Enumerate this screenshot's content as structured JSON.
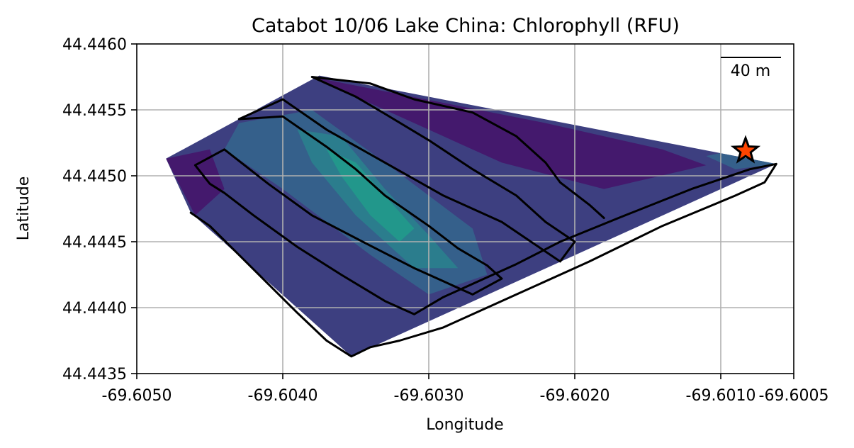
{
  "chart_data": {
    "type": "contour-map",
    "title": "Catabot 10/06 Lake China: Chlorophyll (RFU)",
    "xlabel": "Longitude",
    "ylabel": "Latitude",
    "xlim": [
      -69.605,
      -69.6005
    ],
    "ylim": [
      44.4435,
      44.446
    ],
    "x_ticks": [
      -69.605,
      -69.604,
      -69.603,
      -69.602,
      -69.601,
      -69.6005
    ],
    "x_tick_labels": [
      "-69.6050",
      "-69.6040",
      "-69.6030",
      "-69.6020",
      "-69.6010",
      "-69.6005"
    ],
    "y_ticks": [
      44.4435,
      44.444,
      44.4445,
      44.445,
      44.4455,
      44.446
    ],
    "y_tick_labels": [
      "44.4435",
      "44.4440",
      "44.4445",
      "44.4450",
      "44.4455",
      "44.4460"
    ],
    "grid": true,
    "scale_bar": {
      "label": "40 m",
      "length_deg_lon": 0.00045
    },
    "colors": {
      "deep": "#44196d",
      "low": "#3d3f80",
      "mid": "#35608b",
      "midhigh": "#2b7d8d",
      "high": "#22978b",
      "track": "#000000",
      "star": "#ff4500",
      "grid": "#b0b0b0"
    },
    "hull": [
      [
        -69.6048,
        44.44513
      ],
      [
        -69.60375,
        44.44576
      ],
      [
        -69.60062,
        44.44509
      ],
      [
        -69.60353,
        44.44363
      ],
      [
        -69.60463,
        44.44472
      ]
    ],
    "contour_bands": [
      {
        "level": "deep",
        "polygon": [
          [
            -69.6038,
            44.44575
          ],
          [
            -69.6022,
            44.4454
          ],
          [
            -69.6014,
            44.4452
          ],
          [
            -69.6011,
            44.44508
          ],
          [
            -69.6018,
            44.4449
          ],
          [
            -69.6025,
            44.4451
          ],
          [
            -69.6033,
            44.4455
          ]
        ]
      },
      {
        "level": "deep",
        "polygon": [
          [
            -69.6048,
            44.44513
          ],
          [
            -69.6045,
            44.4452
          ],
          [
            -69.6044,
            44.4449
          ],
          [
            -69.6046,
            44.4447
          ]
        ]
      },
      {
        "level": "mid",
        "polygon": [
          [
            -69.6043,
            44.4454
          ],
          [
            -69.6038,
            44.4455
          ],
          [
            -69.6033,
            44.4451
          ],
          [
            -69.6027,
            44.4446
          ],
          [
            -69.6026,
            44.44425
          ],
          [
            -69.603,
            44.4441
          ],
          [
            -69.6034,
            44.4444
          ],
          [
            -69.604,
            44.4449
          ],
          [
            -69.6044,
            44.4452
          ]
        ]
      },
      {
        "level": "midhigh",
        "polygon": [
          [
            -69.6039,
            44.44535
          ],
          [
            -69.6036,
            44.4453
          ],
          [
            -69.6033,
            44.4449
          ],
          [
            -69.603,
            44.44455
          ],
          [
            -69.6028,
            44.4443
          ],
          [
            -69.6031,
            44.4443
          ],
          [
            -69.6035,
            44.4447
          ],
          [
            -69.6038,
            44.4451
          ]
        ]
      },
      {
        "level": "high",
        "polygon": [
          [
            -69.6037,
            44.4452
          ],
          [
            -69.6035,
            44.4451
          ],
          [
            -69.6033,
            44.44485
          ],
          [
            -69.6031,
            44.4446
          ],
          [
            -69.6032,
            44.4445
          ],
          [
            -69.6034,
            44.4447
          ],
          [
            -69.6036,
            44.445
          ]
        ]
      },
      {
        "level": "mid",
        "polygon": [
          [
            -69.6008,
            44.44522
          ],
          [
            -69.60062,
            44.44509
          ],
          [
            -69.6009,
            44.44505
          ],
          [
            -69.6011,
            44.44515
          ]
        ]
      }
    ],
    "track": [
      [
        -69.60463,
        44.44472
      ],
      [
        -69.6045,
        44.44462
      ],
      [
        -69.6043,
        44.4444
      ],
      [
        -69.6041,
        44.44418
      ],
      [
        -69.6039,
        44.44396
      ],
      [
        -69.6037,
        44.44375
      ],
      [
        -69.60353,
        44.44363
      ],
      [
        -69.6034,
        44.4437
      ],
      [
        -69.6032,
        44.44375
      ],
      [
        -69.6029,
        44.44385
      ],
      [
        -69.6024,
        44.4441
      ],
      [
        -69.6019,
        44.44435
      ],
      [
        -69.6014,
        44.44462
      ],
      [
        -69.6009,
        44.44485
      ],
      [
        -69.6007,
        44.44495
      ],
      [
        -69.60062,
        44.44509
      ],
      [
        -69.6008,
        44.44505
      ],
      [
        -69.6012,
        44.4449
      ],
      [
        -69.6017,
        44.44468
      ],
      [
        -69.6021,
        44.4445
      ],
      [
        -69.6024,
        44.44433
      ],
      [
        -69.6027,
        44.44418
      ],
      [
        -69.6029,
        44.44408
      ],
      [
        -69.6031,
        44.44395
      ],
      [
        -69.6033,
        44.44405
      ],
      [
        -69.6036,
        44.44425
      ],
      [
        -69.6039,
        44.44446
      ],
      [
        -69.6042,
        44.4447
      ],
      [
        -69.6044,
        44.44487
      ],
      [
        -69.6045,
        44.44494
      ],
      [
        -69.6046,
        44.44508
      ],
      [
        -69.6044,
        44.4452
      ],
      [
        -69.6041,
        44.44494
      ],
      [
        -69.6038,
        44.4447
      ],
      [
        -69.6034,
        44.44447
      ],
      [
        -69.6031,
        44.4443
      ],
      [
        -69.6029,
        44.4442
      ],
      [
        -69.6027,
        44.4441
      ],
      [
        -69.6025,
        44.44422
      ],
      [
        -69.6026,
        44.44432
      ],
      [
        -69.6028,
        44.44445
      ],
      [
        -69.603,
        44.44462
      ],
      [
        -69.6033,
        44.44485
      ],
      [
        -69.6035,
        44.44505
      ],
      [
        -69.6037,
        44.44522
      ],
      [
        -69.604,
        44.44545
      ],
      [
        -69.6043,
        44.44543
      ],
      [
        -69.604,
        44.44558
      ],
      [
        -69.6037,
        44.44535
      ],
      [
        -69.6033,
        44.4451
      ],
      [
        -69.6029,
        44.44485
      ],
      [
        -69.6025,
        44.44465
      ],
      [
        -69.6023,
        44.4445
      ],
      [
        -69.6021,
        44.44435
      ],
      [
        -69.602,
        44.4445
      ],
      [
        -69.6022,
        44.44465
      ],
      [
        -69.6024,
        44.44485
      ],
      [
        -69.6027,
        44.44505
      ],
      [
        -69.603,
        44.44527
      ],
      [
        -69.6033,
        44.44547
      ],
      [
        -69.6035,
        44.4456
      ],
      [
        -69.6038,
        44.44575
      ],
      [
        -69.6034,
        44.4457
      ],
      [
        -69.6031,
        44.44558
      ],
      [
        -69.6027,
        44.44548
      ],
      [
        -69.6024,
        44.4453
      ],
      [
        -69.6022,
        44.4451
      ],
      [
        -69.6021,
        44.44495
      ],
      [
        -69.6019,
        44.44478
      ],
      [
        -69.6018,
        44.44468
      ]
    ],
    "marker": {
      "type": "star",
      "lon": -69.60083,
      "lat": 44.44519
    }
  }
}
